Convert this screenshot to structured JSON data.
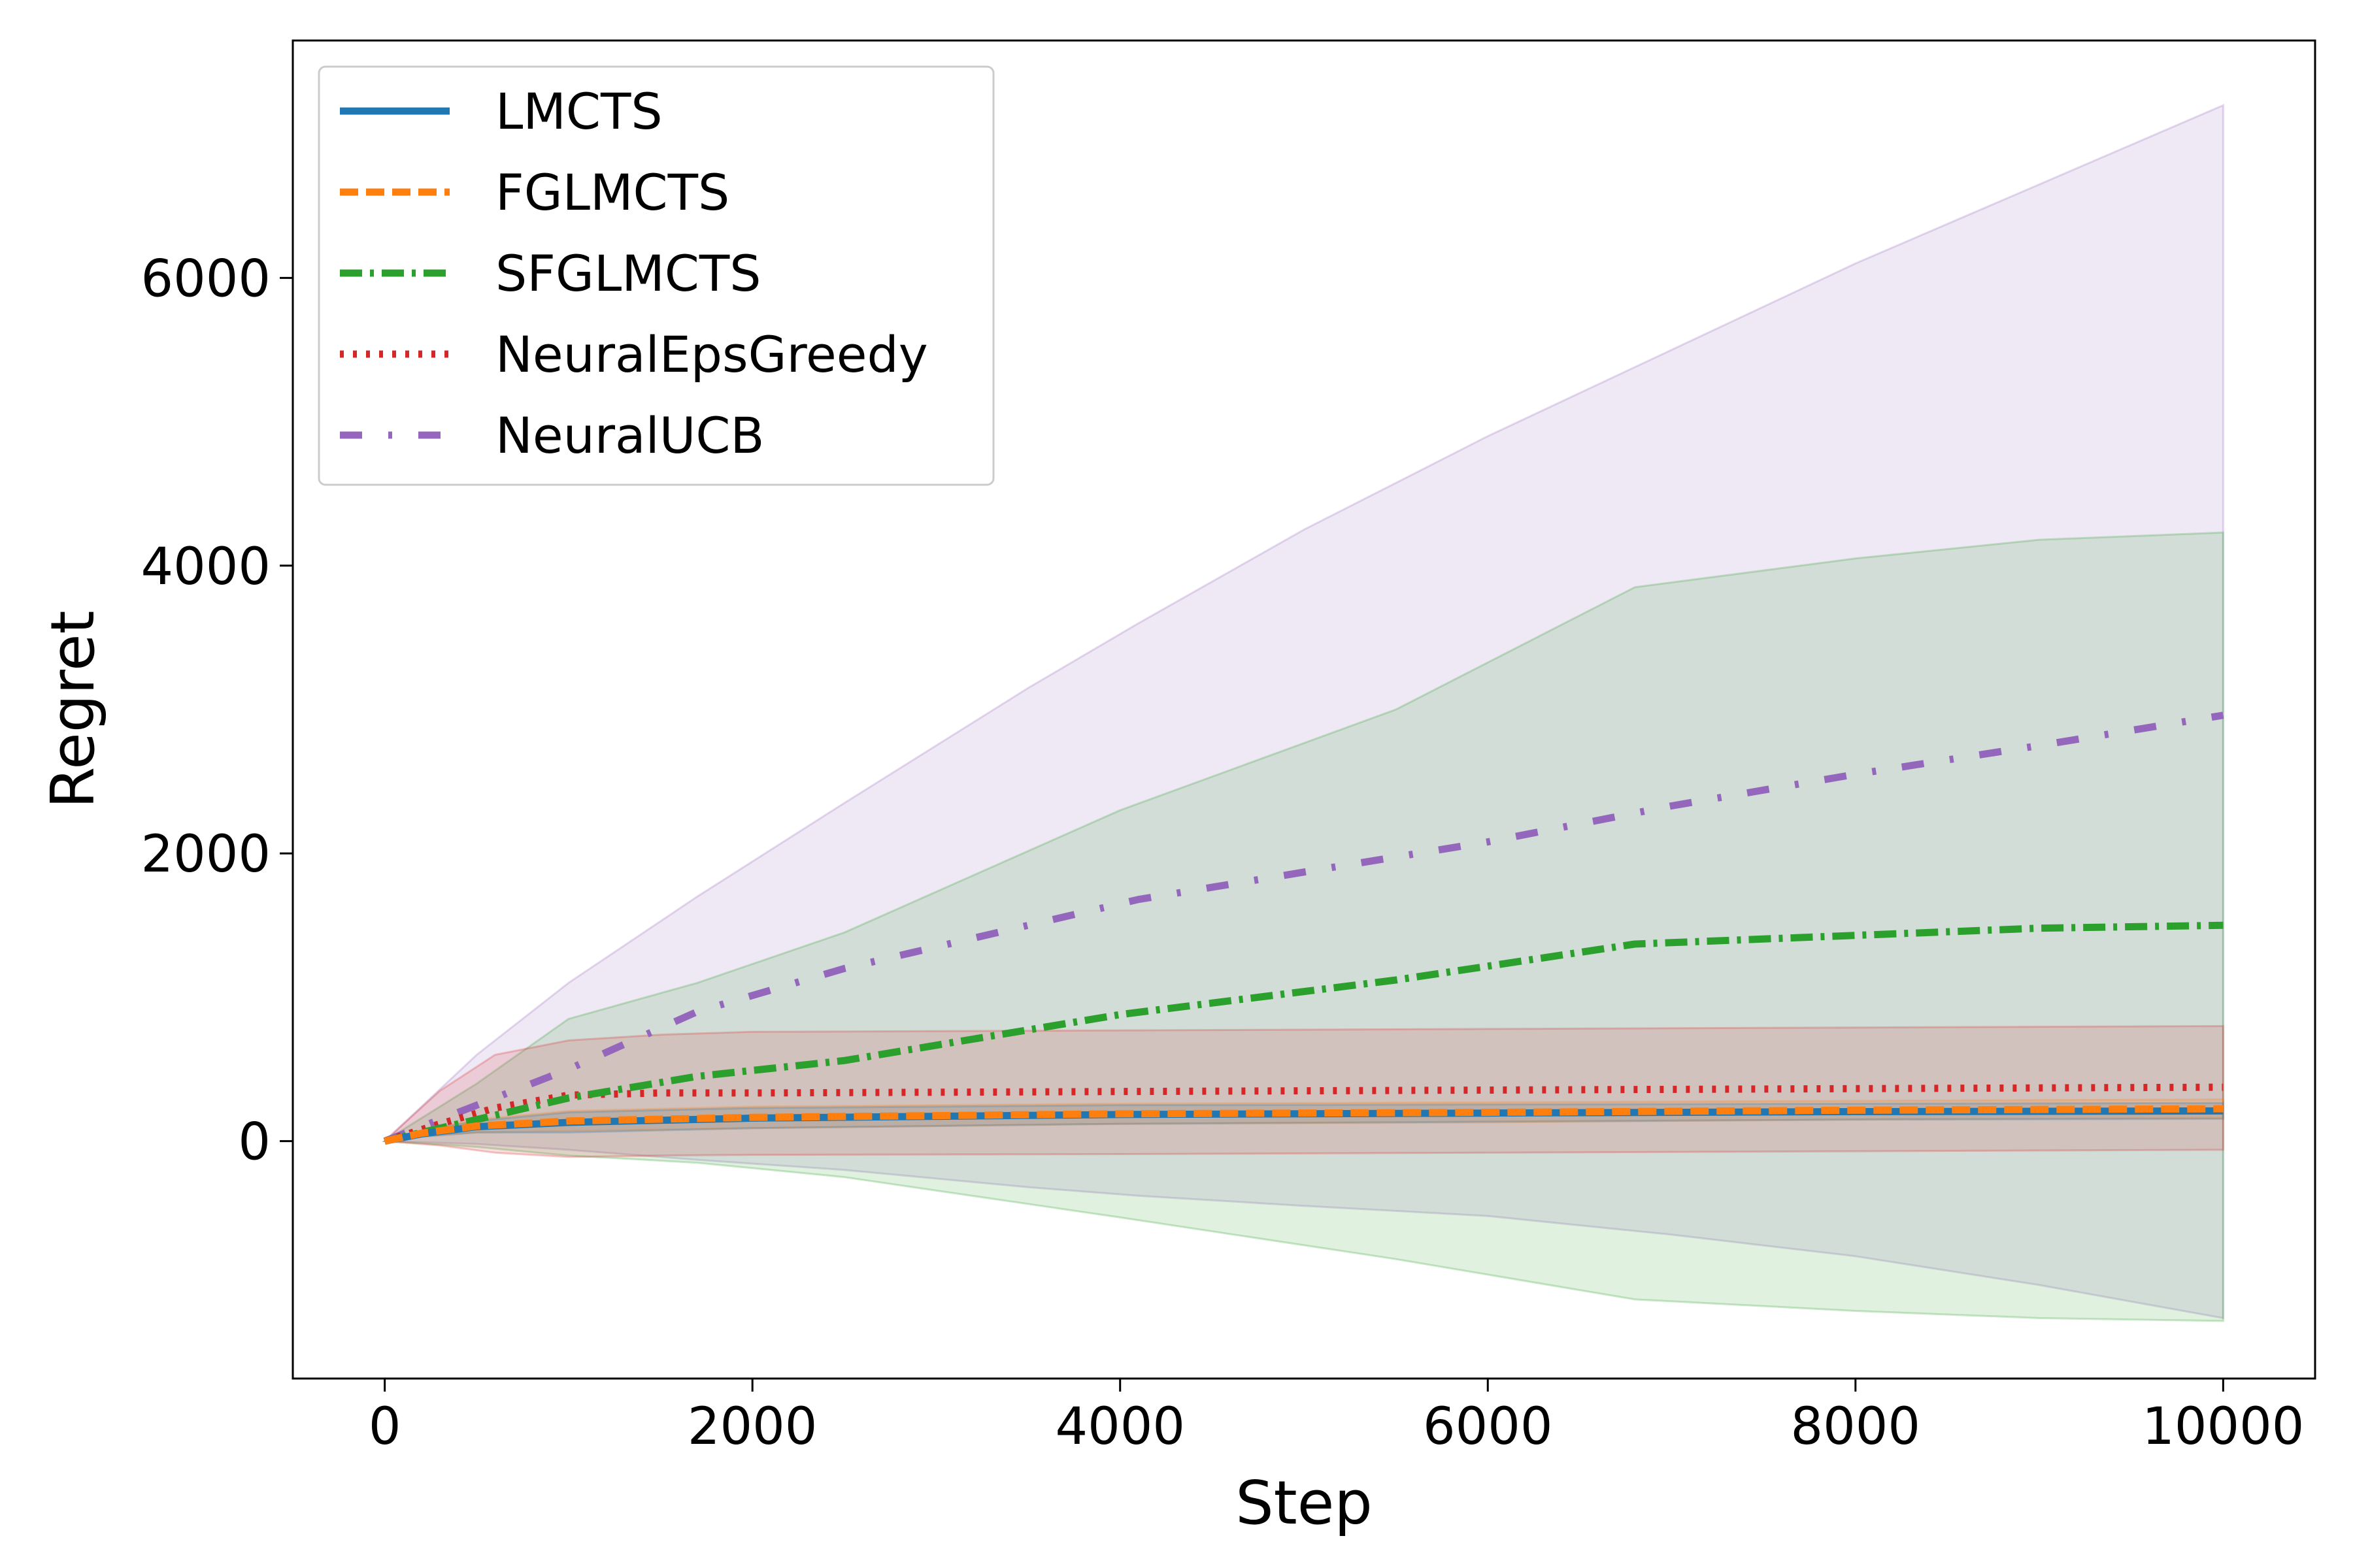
{
  "chart_data": {
    "type": "line",
    "title": "",
    "xlabel": "Step",
    "ylabel": "Regret",
    "xlim": [
      -500,
      10500
    ],
    "ylim": [
      -1650,
      7650
    ],
    "xticks": [
      0,
      2000,
      4000,
      6000,
      8000,
      10000
    ],
    "yticks": [
      0,
      2000,
      4000,
      6000
    ],
    "grid": false,
    "legend_position": "top-left",
    "series": [
      {
        "name": "LMCTS",
        "color": "#1f77b4",
        "style": "solid",
        "x": [
          0,
          200,
          500,
          1000,
          2000,
          4000,
          6000,
          8000,
          10000
        ],
        "y": [
          0,
          50,
          100,
          130,
          160,
          185,
          195,
          205,
          210
        ],
        "band_upper": [
          0,
          70,
          140,
          200,
          230,
          250,
          255,
          260,
          265
        ],
        "band_lower": [
          0,
          30,
          60,
          60,
          90,
          120,
          135,
          150,
          155
        ]
      },
      {
        "name": "FGLMCTS",
        "color": "#ff7f0e",
        "style": "dashed",
        "x": [
          0,
          200,
          500,
          1000,
          2000,
          4000,
          6000,
          8000,
          10000
        ],
        "y": [
          0,
          55,
          105,
          140,
          165,
          190,
          200,
          215,
          225
        ],
        "band_upper": [
          0,
          75,
          150,
          210,
          240,
          260,
          270,
          280,
          290
        ],
        "band_lower": [
          0,
          35,
          60,
          70,
          90,
          120,
          130,
          150,
          160
        ]
      },
      {
        "name": "SFGLMCTS",
        "color": "#2ca02c",
        "style": "dashdot",
        "x": [
          0,
          500,
          1000,
          1700,
          2500,
          4000,
          5500,
          6800,
          8000,
          9000,
          10000
        ],
        "y": [
          0,
          150,
          300,
          450,
          560,
          880,
          1120,
          1370,
          1430,
          1480,
          1500
        ],
        "band_upper": [
          0,
          400,
          850,
          1100,
          1450,
          2300,
          3000,
          3850,
          4050,
          4180,
          4230
        ],
        "band_lower": [
          0,
          -40,
          -100,
          -150,
          -250,
          -530,
          -820,
          -1100,
          -1180,
          -1230,
          -1250
        ]
      },
      {
        "name": "NeuralEpsGreedy",
        "color": "#d62728",
        "style": "dotted",
        "x": [
          0,
          300,
          600,
          1000,
          1500,
          2000,
          4000,
          6000,
          8000,
          10000
        ],
        "y": [
          0,
          120,
          230,
          320,
          335,
          335,
          345,
          355,
          365,
          375
        ],
        "band_upper": [
          0,
          350,
          600,
          700,
          740,
          760,
          770,
          780,
          790,
          800
        ],
        "band_lower": [
          0,
          -30,
          -80,
          -110,
          -100,
          -95,
          -90,
          -80,
          -70,
          -60
        ]
      },
      {
        "name": "NeuralUCB",
        "color": "#9467bd",
        "style": "loosely-dashdotted",
        "x": [
          0,
          500,
          1000,
          1700,
          2500,
          3500,
          4100,
          5000,
          6000,
          7000,
          8000,
          9000,
          10000
        ],
        "y": [
          0,
          250,
          500,
          900,
          1200,
          1500,
          1680,
          1870,
          2080,
          2330,
          2550,
          2750,
          2960
        ],
        "band_upper": [
          0,
          600,
          1100,
          1700,
          2350,
          3150,
          3600,
          4250,
          4900,
          5500,
          6100,
          6650,
          7200
        ],
        "band_lower": [
          0,
          -20,
          -60,
          -130,
          -200,
          -320,
          -380,
          -450,
          -520,
          -650,
          -800,
          -1000,
          -1230
        ]
      }
    ]
  }
}
